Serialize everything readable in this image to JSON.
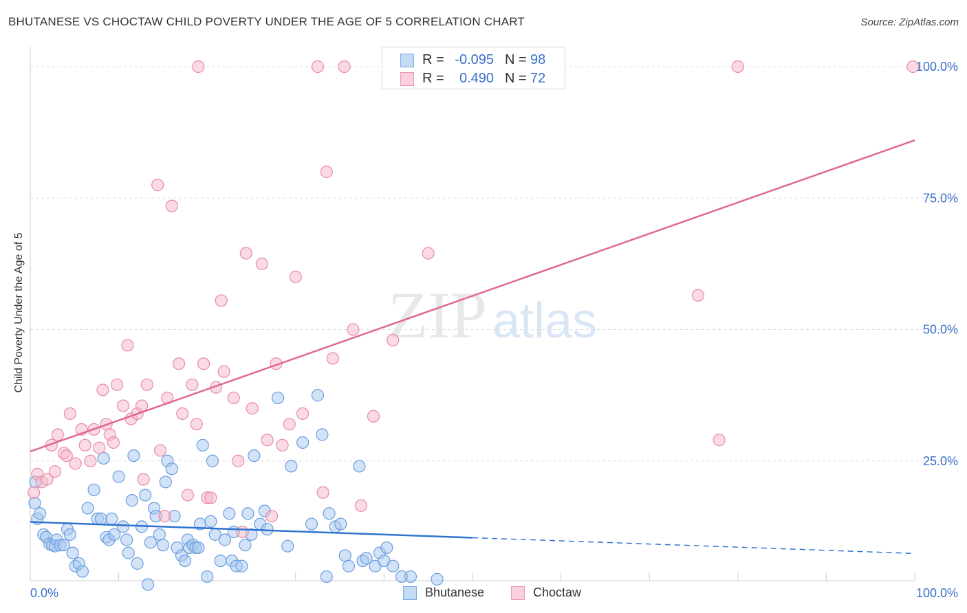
{
  "header": {
    "title": "BHUTANESE VS CHOCTAW CHILD POVERTY UNDER THE AGE OF 5 CORRELATION CHART",
    "source": "Source: ZipAtlas.com"
  },
  "watermark": {
    "zip": "ZIP",
    "atlas": "atlas"
  },
  "legend_stats": [
    {
      "series": "Bhutanese",
      "r_label": "R =",
      "r_value": "-0.095",
      "n_label": "N =",
      "n_value": "98",
      "color": "#a8c8f0"
    },
    {
      "series": "Choctaw",
      "r_label": "R =",
      "r_value": "0.490",
      "n_label": "N =",
      "n_value": "72",
      "color": "#f5b5c8"
    }
  ],
  "colors": {
    "bhutanese_fill": "#a8c8f0",
    "bhutanese_stroke": "#6a9de0",
    "bhutanese_line": "#2f73d0",
    "choctaw_fill": "#f5b5c8",
    "choctaw_stroke": "#e88aa6",
    "choctaw_line": "#e06890",
    "tick_label": "#3a6fc9",
    "grid": "#dddddd"
  },
  "chart_data": {
    "type": "scatter",
    "title": "BHUTANESE VS CHOCTAW CHILD POVERTY UNDER THE AGE OF 5 CORRELATION CHART",
    "xlabel": "",
    "ylabel": "Child Poverty Under the Age of 5",
    "x_tick_labels": [
      "0.0%",
      "100.0%"
    ],
    "y_tick_labels": [
      "25.0%",
      "50.0%",
      "75.0%",
      "100.0%"
    ],
    "xlim": [
      0,
      100
    ],
    "ylim": [
      0,
      100
    ],
    "grid": true,
    "legend_position": "bottom-center",
    "series": [
      {
        "name": "Bhutanese",
        "trend": {
          "x": [
            0,
            50
          ],
          "y": [
            13.4,
            10.4
          ],
          "dashed_to": [
            100,
            7.4
          ]
        },
        "points": [
          [
            0.5,
            17
          ],
          [
            0.6,
            21
          ],
          [
            0.8,
            14
          ],
          [
            1.1,
            15
          ],
          [
            1.5,
            11
          ],
          [
            1.8,
            10.5
          ],
          [
            2.2,
            9.2
          ],
          [
            2.5,
            9
          ],
          [
            2.8,
            8.8
          ],
          [
            3,
            10
          ],
          [
            3.4,
            9
          ],
          [
            3.8,
            9
          ],
          [
            4.2,
            12
          ],
          [
            4.5,
            11
          ],
          [
            4.8,
            7.5
          ],
          [
            5.1,
            5
          ],
          [
            5.5,
            5.5
          ],
          [
            5.9,
            4
          ],
          [
            6.5,
            16
          ],
          [
            7.2,
            19.5
          ],
          [
            7.6,
            14
          ],
          [
            8,
            14
          ],
          [
            8.3,
            25.5
          ],
          [
            8.6,
            10.5
          ],
          [
            8.9,
            10
          ],
          [
            9.2,
            14
          ],
          [
            9.5,
            11
          ],
          [
            10,
            22
          ],
          [
            10.5,
            12.5
          ],
          [
            10.9,
            10
          ],
          [
            11.1,
            7.5
          ],
          [
            11.5,
            17.5
          ],
          [
            11.7,
            26
          ],
          [
            12.1,
            5.5
          ],
          [
            12.6,
            12.5
          ],
          [
            13,
            18.5
          ],
          [
            13.3,
            1.5
          ],
          [
            13.6,
            9.5
          ],
          [
            14,
            16
          ],
          [
            14.2,
            14.5
          ],
          [
            14.6,
            11
          ],
          [
            15,
            9
          ],
          [
            15.3,
            21
          ],
          [
            15.5,
            25
          ],
          [
            16,
            23.5
          ],
          [
            16.3,
            14.5
          ],
          [
            16.6,
            8.5
          ],
          [
            17.1,
            7
          ],
          [
            17.5,
            6
          ],
          [
            17.8,
            10
          ],
          [
            18,
            8.5
          ],
          [
            18.4,
            9
          ],
          [
            18.7,
            8.5
          ],
          [
            19,
            8.5
          ],
          [
            19.2,
            13
          ],
          [
            19.5,
            28
          ],
          [
            20,
            3
          ],
          [
            20.4,
            13.5
          ],
          [
            20.6,
            25
          ],
          [
            20.9,
            11
          ],
          [
            21.5,
            6
          ],
          [
            22,
            10
          ],
          [
            22.5,
            15
          ],
          [
            22.8,
            6
          ],
          [
            23,
            11.5
          ],
          [
            23.3,
            5
          ],
          [
            23.9,
            5
          ],
          [
            24.3,
            9
          ],
          [
            24.6,
            15
          ],
          [
            25,
            11
          ],
          [
            25.3,
            26
          ],
          [
            26,
            13
          ],
          [
            26.5,
            15.5
          ],
          [
            26.8,
            12
          ],
          [
            28,
            37
          ],
          [
            29.1,
            8.8
          ],
          [
            29.5,
            24
          ],
          [
            30.8,
            28.5
          ],
          [
            31.8,
            13
          ],
          [
            32.5,
            37.5
          ],
          [
            33,
            30
          ],
          [
            33.5,
            3
          ],
          [
            33.8,
            15
          ],
          [
            34.5,
            12.5
          ],
          [
            35.1,
            13
          ],
          [
            35.6,
            7
          ],
          [
            36,
            5
          ],
          [
            37.2,
            24
          ],
          [
            37.6,
            6
          ],
          [
            38,
            6.5
          ],
          [
            39,
            5
          ],
          [
            39.5,
            7.5
          ],
          [
            40,
            6
          ],
          [
            40.3,
            8.5
          ],
          [
            41,
            5
          ],
          [
            42,
            3
          ],
          [
            43,
            3
          ],
          [
            46,
            2.5
          ]
        ]
      },
      {
        "name": "Choctaw",
        "trend": {
          "x": [
            0,
            100
          ],
          "y": [
            26.8,
            86
          ]
        },
        "points": [
          [
            0.4,
            19
          ],
          [
            0.8,
            22.5
          ],
          [
            1.3,
            21
          ],
          [
            1.9,
            21.5
          ],
          [
            2.4,
            28
          ],
          [
            2.8,
            23
          ],
          [
            3.1,
            30
          ],
          [
            3.8,
            26.5
          ],
          [
            4.1,
            26
          ],
          [
            4.5,
            34
          ],
          [
            5.1,
            24.5
          ],
          [
            5.8,
            31
          ],
          [
            6.2,
            28
          ],
          [
            6.8,
            25
          ],
          [
            7.2,
            31
          ],
          [
            7.8,
            27.5
          ],
          [
            8.2,
            38.5
          ],
          [
            8.6,
            32
          ],
          [
            9,
            30
          ],
          [
            9.4,
            28.5
          ],
          [
            9.8,
            39.5
          ],
          [
            10.5,
            35.5
          ],
          [
            11,
            47
          ],
          [
            11.4,
            33
          ],
          [
            12.1,
            34
          ],
          [
            12.6,
            35.5
          ],
          [
            12.8,
            21.5
          ],
          [
            13.2,
            39.5
          ],
          [
            14.4,
            77.5
          ],
          [
            14.7,
            27
          ],
          [
            15.2,
            14.5
          ],
          [
            15.5,
            37
          ],
          [
            16,
            73.5
          ],
          [
            16.8,
            43.5
          ],
          [
            17.2,
            34
          ],
          [
            17.8,
            18.5
          ],
          [
            18.3,
            39.5
          ],
          [
            18.8,
            32
          ],
          [
            19,
            100
          ],
          [
            19.6,
            43.5
          ],
          [
            20,
            18
          ],
          [
            20.4,
            18
          ],
          [
            21,
            39
          ],
          [
            21.6,
            55.5
          ],
          [
            21.9,
            42
          ],
          [
            23,
            37
          ],
          [
            23.5,
            25
          ],
          [
            24,
            11.5
          ],
          [
            24.4,
            64.5
          ],
          [
            25.1,
            35
          ],
          [
            26.2,
            62.5
          ],
          [
            26.8,
            29
          ],
          [
            27.3,
            14.5
          ],
          [
            27.8,
            43.5
          ],
          [
            28.5,
            28
          ],
          [
            29.3,
            32
          ],
          [
            30,
            60
          ],
          [
            30.8,
            34
          ],
          [
            32.5,
            100
          ],
          [
            33.1,
            19
          ],
          [
            33.5,
            80
          ],
          [
            34.2,
            44.5
          ],
          [
            35.5,
            100
          ],
          [
            36.5,
            50
          ],
          [
            37.4,
            16.5
          ],
          [
            38.8,
            33.5
          ],
          [
            41,
            48
          ],
          [
            45,
            64.5
          ],
          [
            75.5,
            56.5
          ],
          [
            77.9,
            29
          ],
          [
            80,
            100
          ],
          [
            99.8,
            100
          ]
        ]
      }
    ]
  }
}
